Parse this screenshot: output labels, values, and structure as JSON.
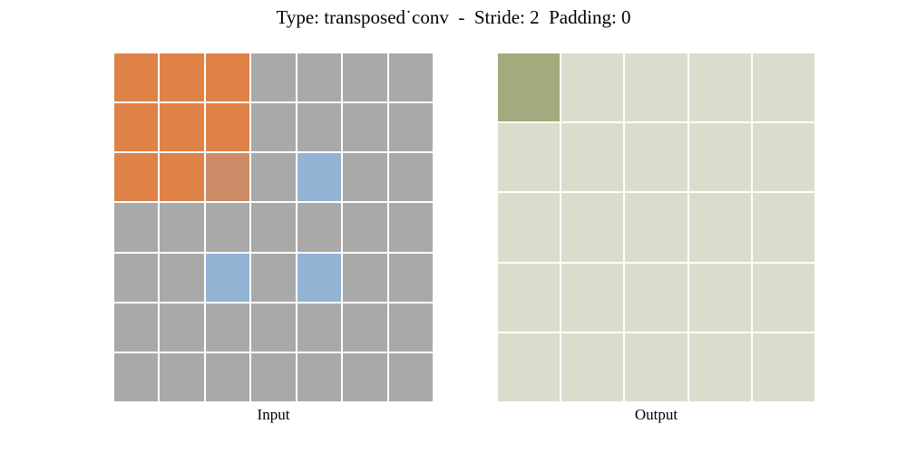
{
  "title": "Type: transposed˙conv  -  Stride: 2  Padding: 0",
  "parameters": {
    "type": "transposed˙conv",
    "stride": "2",
    "padding": "0"
  },
  "palette": {
    "o": "#de8248",
    "b": "#cd8d68",
    "g": "#a9a9a9",
    "u": "#92b4d5",
    "a": "#a4aa7d",
    "e": "#dbddcc"
  },
  "palette_notes": {
    "o": "orange-cell",
    "b": "blended-orange-cell",
    "g": "gray-cell",
    "u": "blue-cell",
    "a": "olive-cell",
    "e": "beige-cell"
  },
  "panels": {
    "input": {
      "label": "Input",
      "rows": 7,
      "cols": 7,
      "cells": [
        "ooogggg",
        "ooogggg",
        "oobgugg",
        "ggggggg",
        "ggugugg",
        "ggggggg",
        "ggggggg"
      ]
    },
    "output": {
      "label": "Output",
      "rows": 5,
      "cols": 5,
      "cells": [
        "aeeee",
        "eeeee",
        "eeeee",
        "eeeee",
        "eeeee"
      ]
    }
  }
}
